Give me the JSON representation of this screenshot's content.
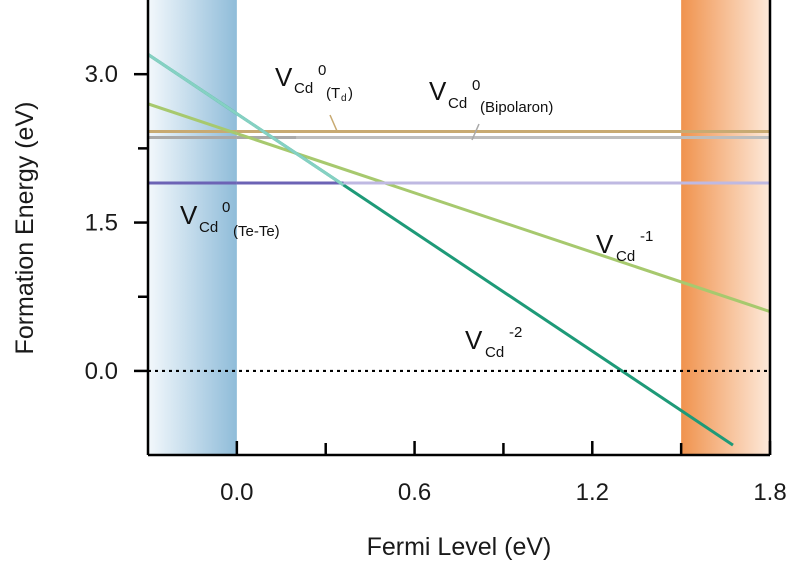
{
  "chart_data": {
    "type": "line",
    "title": "",
    "xlabel": "Fermi Level (eV)",
    "ylabel": "Formation Energy (eV)",
    "xlim": [
      -0.3,
      1.8
    ],
    "ylim": [
      -0.85,
      3.75
    ],
    "xticks": [
      "0.0",
      "0.6",
      "1.2",
      "1.8"
    ],
    "xtick_values": [
      0.0,
      0.6,
      1.2,
      1.8
    ],
    "xminor_ticks": [
      0.3,
      0.9,
      1.5
    ],
    "yticks": [
      "3.0",
      "1.5",
      "0.0"
    ],
    "ytick_values": [
      3.0,
      1.5,
      0.0
    ],
    "yminor_ticks": [
      2.25,
      0.75
    ],
    "grid": false,
    "legend": "none",
    "shaded_regions": [
      {
        "name": "valence-band",
        "x": [
          -0.3,
          0.0
        ],
        "color_from": "#f3f8fc",
        "color_to": "#8fbcd9"
      },
      {
        "name": "conduction-band",
        "x": [
          1.5,
          1.8
        ],
        "color_from": "#f0934e",
        "color_to": "#fde9da"
      }
    ],
    "series": [
      {
        "x": [
          -0.3,
          1.8
        ],
        "y": [
          2.42,
          2.42
        ],
        "color": "#c8aa72",
        "color_dim": "#c8aa72",
        "width": 3
      },
      {
        "x": [
          -0.3,
          1.8
        ],
        "y": [
          2.36,
          2.36
        ],
        "color": "#a9a9a9",
        "color_dim": "#bdbdbd",
        "width": 3
      },
      {
        "x": [
          -0.3,
          1.8
        ],
        "y": [
          1.9,
          1.9
        ],
        "color": "#6c63b5",
        "color_dim": "#bfb9e2",
        "width": 3
      },
      {
        "x": [
          -0.3,
          1.8
        ],
        "y": [
          2.7,
          0.6
        ],
        "color": "#a7c96e",
        "color_dim": "#a7c96e",
        "width": 3
      },
      {
        "x": [
          -0.3,
          1.675
        ],
        "y": [
          3.2,
          -0.75
        ],
        "color": "#1e9a78",
        "color_dim": "#85d1c3",
        "width": 3
      }
    ],
    "reference_lines": [
      {
        "name": "zero-line",
        "y": 0.0,
        "style": "dotted",
        "color": "#000000"
      }
    ],
    "annotations": [
      {
        "name": "label-vcd0-td",
        "main": "V",
        "sub": "Cd",
        "sup": "0",
        "tail": "(T",
        "tailsub": "d",
        "tailend": ")"
      },
      {
        "name": "label-vcd0-bipolaron",
        "main": "V",
        "sub": "Cd",
        "sup": "0",
        "tail": "(Bipolaron)"
      },
      {
        "name": "label-vcd0-tete",
        "main": "V",
        "sub": "Cd",
        "sup": "0",
        "tail": "(Te-Te)"
      },
      {
        "name": "label-vcd-1",
        "main": "V",
        "sub": "Cd",
        "sup": "-1"
      },
      {
        "name": "label-vcd-2",
        "main": "V",
        "sub": "Cd",
        "sup": "-2"
      }
    ]
  }
}
